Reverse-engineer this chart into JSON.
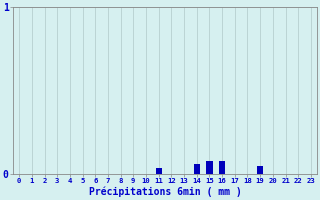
{
  "xlabel": "Précipitations 6min ( mm )",
  "hours": [
    0,
    1,
    2,
    3,
    4,
    5,
    6,
    7,
    8,
    9,
    10,
    11,
    12,
    13,
    14,
    15,
    16,
    17,
    18,
    19,
    20,
    21,
    22,
    23
  ],
  "values": [
    0,
    0,
    0,
    0,
    0,
    0,
    0,
    0,
    0,
    0,
    0,
    0.04,
    0,
    0,
    0.06,
    0.08,
    0.08,
    0,
    0,
    0.05,
    0,
    0,
    0,
    0
  ],
  "ylim": [
    0,
    1.0
  ],
  "bar_color": "#0000bb",
  "bg_color": "#d6f0f0",
  "grid_color": "#b0c8c8",
  "axis_color": "#888888",
  "text_color": "#0000cc",
  "ytick_labels": [
    "0",
    "1"
  ],
  "ytick_values": [
    0,
    1.0
  ]
}
